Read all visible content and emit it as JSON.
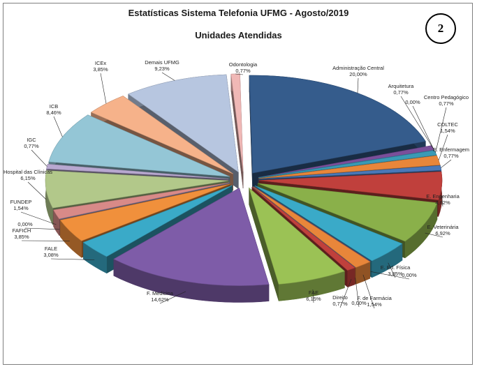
{
  "header": {
    "title": "Estatísticas Sistema Telefonia UFMG - Agosto/2019",
    "subtitle": "Unidades Atendidas",
    "badge": "2"
  },
  "chart_data": {
    "type": "pie",
    "title": "Estatísticas Sistema Telefonia UFMG - Agosto/2019",
    "subtitle": "Unidades Atendidas",
    "exploded": true,
    "three_d": true,
    "slices": [
      {
        "label": "Administração Central",
        "value": 20.0,
        "display": "20,00%",
        "color": "#355c8c"
      },
      {
        "label": "Arquitetura",
        "value": 0.77,
        "display": "0,77%",
        "color": "#7a4f9a"
      },
      {
        "label": "",
        "value": 0.0,
        "display": "0,00%",
        "color": "#2f9fbf"
      },
      {
        "label": "Centro Pedagógico",
        "value": 0.77,
        "display": "0,77%",
        "color": "#3a9ab5"
      },
      {
        "label": "COLTEC",
        "value": 1.54,
        "display": "1,54%",
        "color": "#e8863a"
      },
      {
        "label": "E. Enfermagem",
        "value": 0.77,
        "display": "0,77%",
        "color": "#4a78b8"
      },
      {
        "label": "E. Engenharia",
        "value": 4.62,
        "display": "4,62%",
        "color": "#c0403c"
      },
      {
        "label": "E. Veterinária",
        "value": 6.92,
        "display": "6,92%",
        "color": "#8ab04a"
      },
      {
        "label": "E. Ed. Física",
        "value": 3.85,
        "display": "3,85%",
        "color": "#3aaac8"
      },
      {
        "label": "",
        "value": 0.0,
        "display": "0,00%",
        "color": "#7a5aa0"
      },
      {
        "label": "F. de Farmácia",
        "value": 1.54,
        "display": "1,54%",
        "color": "#e8863a"
      },
      {
        "label": "",
        "value": 0.0,
        "display": "0,00%",
        "color": "#4a78b8"
      },
      {
        "label": "Direito",
        "value": 0.77,
        "display": "0,77%",
        "color": "#c0403c"
      },
      {
        "label": "FAE",
        "value": 6.15,
        "display": "6,15%",
        "color": "#9bc255"
      },
      {
        "label": "F. Medicina",
        "value": 14.62,
        "display": "14,62%",
        "color": "#7e5ca8"
      },
      {
        "label": "FALE",
        "value": 3.08,
        "display": "3,08%",
        "color": "#3aaac8"
      },
      {
        "label": "FAFICH",
        "value": 3.85,
        "display": "3,85%",
        "color": "#f0903c"
      },
      {
        "label": "",
        "value": 0.0,
        "display": "0,00%",
        "color": "#7090c8"
      },
      {
        "label": "FUNDEP",
        "value": 1.54,
        "display": "1,54%",
        "color": "#d88a88"
      },
      {
        "label": "Hospital das Clínicas",
        "value": 6.15,
        "display": "6,15%",
        "color": "#b2c88a"
      },
      {
        "label": "IGC",
        "value": 0.77,
        "display": "0,77%",
        "color": "#b8a8d0"
      },
      {
        "label": "ICB",
        "value": 8.46,
        "display": "8,46%",
        "color": "#94c6d6"
      },
      {
        "label": "ICEx",
        "value": 3.85,
        "display": "3,85%",
        "color": "#f6b28a"
      },
      {
        "label": "Demais UFMG",
        "value": 9.23,
        "display": "9,23%",
        "color": "#b7c6e0"
      },
      {
        "label": "Odontologia",
        "value": 0.77,
        "display": "0,77%",
        "color": "#f0b8b6"
      }
    ]
  }
}
